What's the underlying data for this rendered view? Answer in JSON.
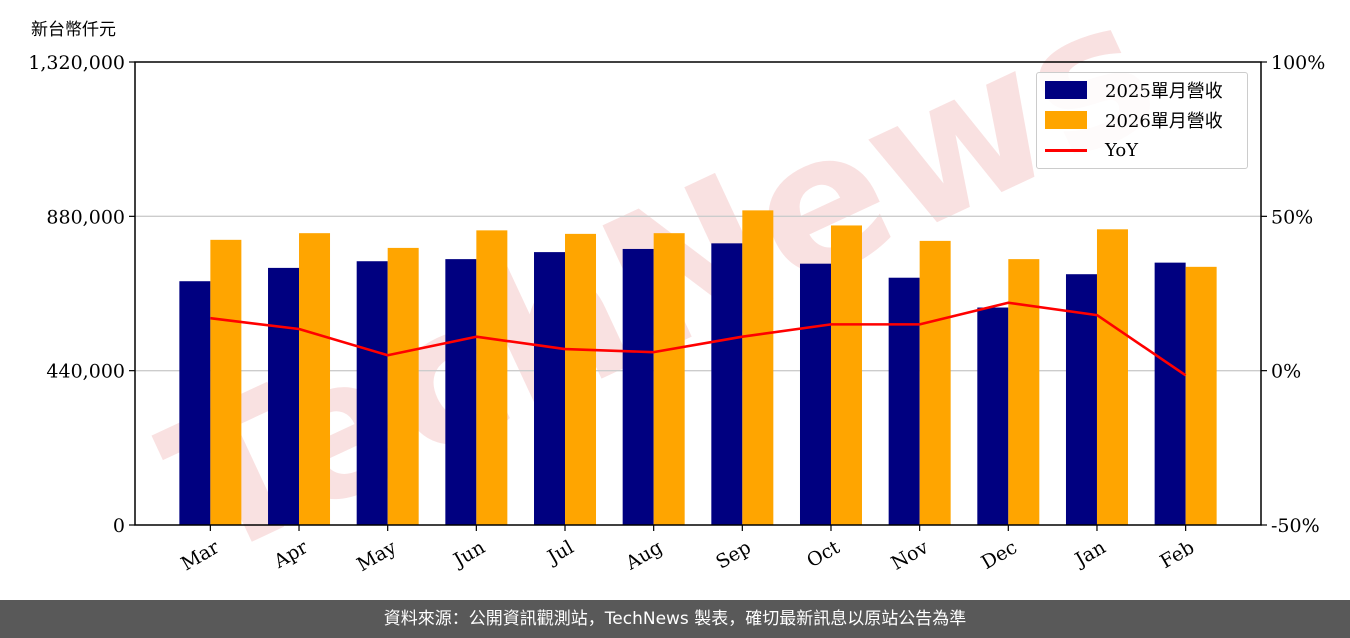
{
  "unit_label": "新台幣仟元",
  "footer_text": "資料來源：公開資訊觀測站，TechNews 製表，確切最新訊息以原站公告為準",
  "watermark": "TechNews",
  "colors": {
    "series_2025": "#000080",
    "series_2026": "#FFA500",
    "yoy": "#FF0000",
    "watermark": "#f5c9c9"
  },
  "chart_data": {
    "type": "bar",
    "categories": [
      "Mar",
      "Apr",
      "May",
      "Jun",
      "Jul",
      "Aug",
      "Sep",
      "Oct",
      "Nov",
      "Dec",
      "Jan",
      "Feb"
    ],
    "series": [
      {
        "name": "2025單月營收",
        "values": [
          695000,
          733000,
          752000,
          758000,
          778000,
          787000,
          803000,
          745000,
          705000,
          620000,
          715000,
          748000
        ]
      },
      {
        "name": "2026單月營收",
        "values": [
          813000,
          832000,
          790000,
          840000,
          830000,
          832000,
          897000,
          854000,
          810000,
          758000,
          843000,
          736000
        ]
      }
    ],
    "line_series": {
      "name": "YoY",
      "axis": "right",
      "values": [
        17.0,
        13.5,
        5.0,
        11.0,
        7.0,
        6.0,
        11.0,
        15.0,
        15.0,
        22.0,
        18.0,
        -1.5
      ]
    },
    "yticks_left": [
      "0",
      "440,000",
      "880,000",
      "1,320,000"
    ],
    "yticks_right": [
      "-50%",
      "0%",
      "50%",
      "100%"
    ],
    "ylim": [
      0,
      1320000
    ],
    "ylim_right": [
      -50,
      100
    ],
    "grid": "horizontal",
    "legend": "top-right",
    "legend_labels": [
      "2025單月營收",
      "2026單月營收",
      "YoY"
    ]
  }
}
